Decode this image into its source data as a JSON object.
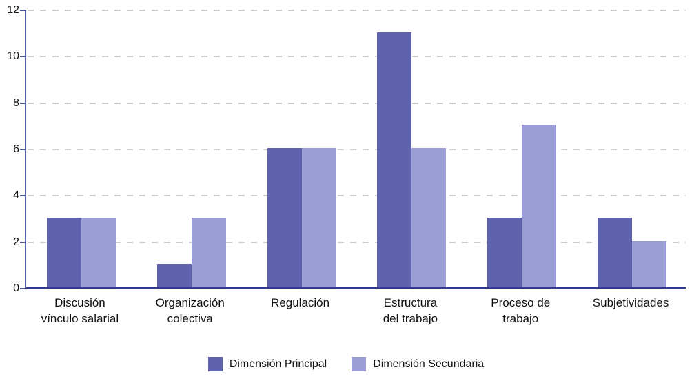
{
  "chart_data": {
    "type": "bar",
    "title": "",
    "xlabel": "",
    "ylabel": "",
    "categories": [
      "Discusión\nvínculo salarial",
      "Organización\ncolectiva",
      "Regulación",
      "Estructura\ndel trabajo",
      "Proceso de\ntrabajo",
      "Subjetividades"
    ],
    "series": [
      {
        "name": "Dimensión Principal",
        "values": [
          3,
          1,
          6,
          11,
          3,
          3
        ],
        "color": "#5f62ac"
      },
      {
        "name": "Dimensión Secundaria",
        "values": [
          3,
          3,
          6,
          6,
          7,
          2
        ],
        "color": "#9b9ed4"
      }
    ],
    "y_ticks": [
      0,
      2,
      4,
      6,
      8,
      10,
      12
    ],
    "ylim": [
      0,
      12
    ],
    "grid": "horizontal-dashed",
    "legend_position": "bottom"
  },
  "style_colors": {
    "grid_line": "#cccccc",
    "y_axis_line": "#5a64a8",
    "x_axis_line": "#2e3a8c",
    "text": "#111111",
    "background": "#ffffff"
  }
}
